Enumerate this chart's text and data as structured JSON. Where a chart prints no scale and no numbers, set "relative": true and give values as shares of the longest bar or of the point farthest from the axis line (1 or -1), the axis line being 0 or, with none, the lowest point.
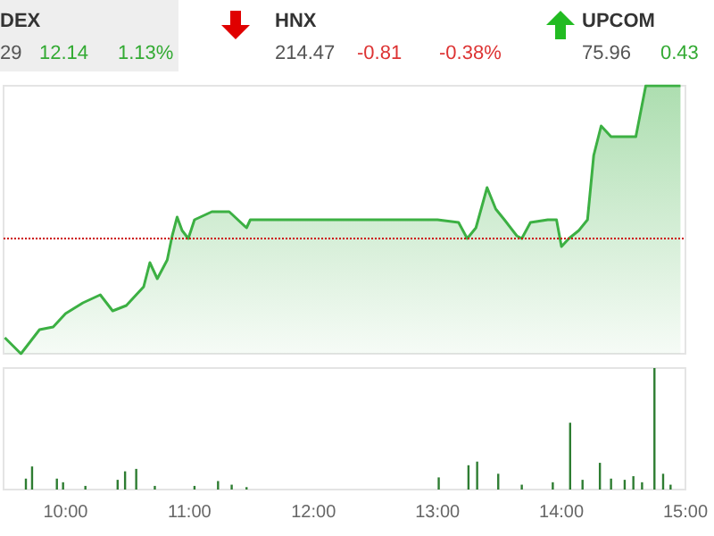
{
  "chart_data": [
    {
      "type": "area",
      "relative": true,
      "x": [
        9.51,
        9.64,
        9.79,
        9.9,
        10.0,
        10.14,
        10.28,
        10.38,
        10.49,
        10.63,
        10.68,
        10.74,
        10.82,
        10.86,
        10.9,
        10.94,
        10.99,
        11.04,
        11.18,
        11.32,
        11.46,
        11.49,
        13.0,
        13.17,
        13.24,
        13.31,
        13.4,
        13.47,
        13.54,
        13.64,
        13.68,
        13.75,
        13.89,
        13.96,
        14.0,
        14.06,
        14.14,
        14.21,
        14.26,
        14.32,
        14.4,
        14.6,
        14.68,
        14.96
      ],
      "series": [
        {
          "color": "#3cb043",
          "values": [
            0.06,
            0,
            0.09,
            0.1,
            0.15,
            0.19,
            0.22,
            0.16,
            0.18,
            0.25,
            0.34,
            0.28,
            0.35,
            0.44,
            0.51,
            0.46,
            0.43,
            0.5,
            0.53,
            0.53,
            0.47,
            0.5,
            0.5,
            0.49,
            0.43,
            0.47,
            0.62,
            0.54,
            0.5,
            0.44,
            0.43,
            0.49,
            0.5,
            0.5,
            0.4,
            0.43,
            0.46,
            0.5,
            0.74,
            0.85,
            0.81,
            0.81,
            1.0,
            1.0
          ]
        }
      ],
      "xlim": [
        9.5,
        15.0
      ],
      "tick_labels": false,
      "marker": "none",
      "ref_lines": [
        {
          "axis": "y",
          "value": 0.43,
          "color": "#cc0000",
          "line_style": "dotted"
        }
      ],
      "annotations": [
        "DEX",
        "29",
        "12.14",
        "1.13%",
        "HNX",
        "214.47",
        "-0.81",
        "-0.38%",
        "UPCOM",
        "75.96",
        "0.43"
      ]
    },
    {
      "type": "bar",
      "relative": true,
      "x": [
        9.68,
        9.73,
        9.93,
        9.98,
        10.16,
        10.42,
        10.48,
        10.57,
        10.72,
        11.04,
        11.23,
        11.34,
        11.46,
        13.01,
        13.25,
        13.32,
        13.49,
        13.68,
        13.93,
        14.07,
        14.17,
        14.31,
        14.4,
        14.51,
        14.58,
        14.65,
        14.75,
        14.82,
        14.88
      ],
      "series": [
        {
          "color": "#2e7d32",
          "values": [
            0.09,
            0.19,
            0.09,
            0.06,
            0.03,
            0.08,
            0.15,
            0.17,
            0.03,
            0.03,
            0.07,
            0.04,
            0.02,
            0.1,
            0.2,
            0.23,
            0.13,
            0.04,
            0.06,
            0.55,
            0.08,
            0.22,
            0.09,
            0.08,
            0.11,
            0.06,
            1.0,
            0.13,
            0.04
          ]
        }
      ],
      "xlim": [
        9.5,
        15.0
      ],
      "xticks": [
        {
          "value": 10,
          "label": "10:00"
        },
        {
          "value": 11,
          "label": "11:00"
        },
        {
          "value": 12,
          "label": "12:00"
        },
        {
          "value": 13,
          "label": "13:00"
        },
        {
          "value": 14,
          "label": "14:00"
        },
        {
          "value": 15,
          "label": "15:00"
        }
      ],
      "tick_labels": "x"
    }
  ]
}
